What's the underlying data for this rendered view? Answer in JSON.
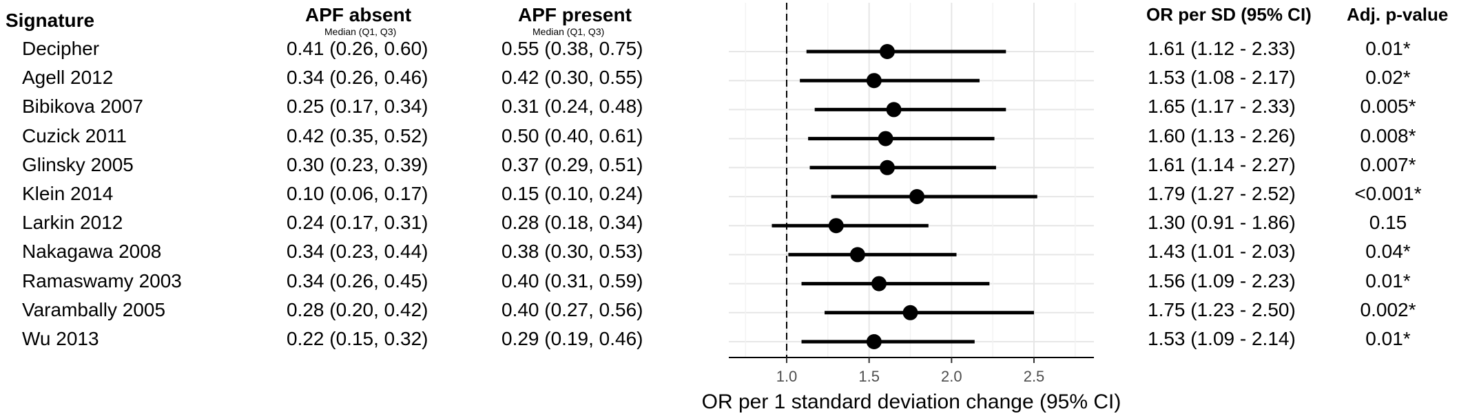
{
  "headers": {
    "signature": "Signature",
    "apf_absent": "APF absent",
    "apf_absent_sub": "Median (Q1, Q3)",
    "apf_present": "APF present",
    "apf_present_sub": "Median (Q1, Q3)",
    "or": "OR per SD (95% CI)",
    "pval": "Adj. p-value"
  },
  "rows": [
    {
      "name": "Decipher",
      "absent": "0.41 (0.26, 0.60)",
      "present": "0.55 (0.38, 0.75)",
      "or_text": "1.61 (1.12 - 2.33)",
      "p": "0.01*"
    },
    {
      "name": "Agell 2012",
      "absent": "0.34 (0.26, 0.46)",
      "present": "0.42 (0.30, 0.55)",
      "or_text": "1.53 (1.08 - 2.17)",
      "p": "0.02*"
    },
    {
      "name": "Bibikova 2007",
      "absent": "0.25 (0.17, 0.34)",
      "present": "0.31 (0.24, 0.48)",
      "or_text": "1.65 (1.17 - 2.33)",
      "p": "0.005*"
    },
    {
      "name": "Cuzick 2011",
      "absent": "0.42 (0.35, 0.52)",
      "present": "0.50 (0.40, 0.61)",
      "or_text": "1.60 (1.13 - 2.26)",
      "p": "0.008*"
    },
    {
      "name": "Glinsky 2005",
      "absent": "0.30 (0.23, 0.39)",
      "present": "0.37 (0.29, 0.51)",
      "or_text": "1.61 (1.14 - 2.27)",
      "p": "0.007*"
    },
    {
      "name": "Klein 2014",
      "absent": "0.10 (0.06, 0.17)",
      "present": "0.15 (0.10, 0.24)",
      "or_text": "1.79 (1.27 - 2.52)",
      "p": "<0.001*"
    },
    {
      "name": "Larkin 2012",
      "absent": "0.24 (0.17, 0.31)",
      "present": "0.28 (0.18, 0.34)",
      "or_text": "1.30 (0.91 - 1.86)",
      "p": "0.15"
    },
    {
      "name": "Nakagawa 2008",
      "absent": "0.34 (0.23, 0.44)",
      "present": "0.38 (0.30, 0.53)",
      "or_text": "1.43 (1.01 - 2.03)",
      "p": "0.04*"
    },
    {
      "name": "Ramaswamy 2003",
      "absent": "0.34 (0.26, 0.45)",
      "present": "0.40 (0.31, 0.59)",
      "or_text": "1.56 (1.09 - 2.23)",
      "p": "0.01*"
    },
    {
      "name": "Varambally 2005",
      "absent": "0.28 (0.20, 0.42)",
      "present": "0.40 (0.27, 0.56)",
      "or_text": "1.75 (1.23 - 2.50)",
      "p": "0.002*"
    },
    {
      "name": "Wu 2013",
      "absent": "0.22 (0.15, 0.32)",
      "present": "0.29 (0.19, 0.46)",
      "or_text": "1.53 (1.09 - 2.14)",
      "p": "0.01*"
    }
  ],
  "chart_data": {
    "type": "forest",
    "xlabel": "OR per 1 standard deviation change (95% CI)",
    "xlim": [
      0.65,
      2.8
    ],
    "xticks": [
      1.0,
      1.5,
      2.0,
      2.5
    ],
    "xtick_labels": [
      "1.0",
      "1.5",
      "2.0",
      "2.5"
    ],
    "reference_line": 1.0,
    "grid": true,
    "categories": [
      "Decipher",
      "Agell 2012",
      "Bibikova 2007",
      "Cuzick 2011",
      "Glinsky 2005",
      "Klein 2014",
      "Larkin 2012",
      "Nakagawa 2008",
      "Ramaswamy 2003",
      "Varambally 2005",
      "Wu 2013"
    ],
    "or": [
      1.61,
      1.53,
      1.65,
      1.6,
      1.61,
      1.79,
      1.3,
      1.43,
      1.56,
      1.75,
      1.53
    ],
    "lower": [
      1.12,
      1.08,
      1.17,
      1.13,
      1.14,
      1.27,
      0.91,
      1.01,
      1.09,
      1.23,
      1.09
    ],
    "upper": [
      2.33,
      2.17,
      2.33,
      2.26,
      2.27,
      2.52,
      1.86,
      2.03,
      2.23,
      2.5,
      2.14
    ]
  },
  "colors": {
    "marker": "#000000",
    "grid_major": "#e6e6e6",
    "grid_minor": "#f2f2f2",
    "reference": "#000000",
    "tick_label": "#4d4d4d"
  }
}
